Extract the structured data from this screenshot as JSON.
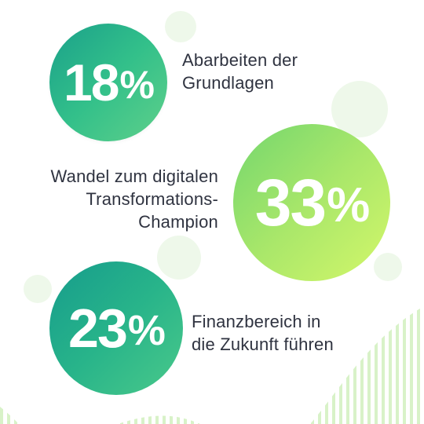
{
  "stats": [
    {
      "value": "18",
      "unit": "%",
      "line1": "Abarbeiten der",
      "line2": "Grundlagen",
      "line3": ""
    },
    {
      "value": "33",
      "unit": "%",
      "line1": "Wandel zum digitalen",
      "line2": "Transformations-",
      "line3": "Champion"
    },
    {
      "value": "23",
      "unit": "%",
      "line1": "Finanzbereich in",
      "line2": "die Zukunft führen",
      "line3": ""
    }
  ],
  "colors": {
    "text": "#2f3340",
    "teal": "#1aa08a",
    "lime": "#d4f76a",
    "decor": "#eef8ea",
    "stripe": "#d8f2c8"
  }
}
